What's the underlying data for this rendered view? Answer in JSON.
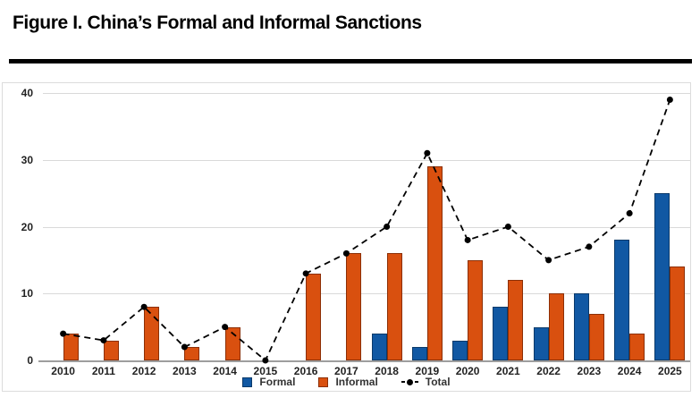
{
  "figure": {
    "title": "Figure I. China’s Formal and Informal Sanctions"
  },
  "chart_data": {
    "type": "bar",
    "title": "Figure I. China’s Formal and Informal Sanctions",
    "categories": [
      "2010",
      "2011",
      "2012",
      "2013",
      "2014",
      "2015",
      "2016",
      "2017",
      "2018",
      "2019",
      "2020",
      "2021",
      "2022",
      "2023",
      "2024",
      "2025"
    ],
    "series": [
      {
        "name": "Formal",
        "kind": "bar",
        "color": "#1158A3",
        "border_color": "#0B3A6A",
        "values": [
          0,
          0,
          0,
          0,
          0,
          0,
          0,
          0,
          4,
          2,
          3,
          8,
          5,
          10,
          18,
          25
        ]
      },
      {
        "name": "Informal",
        "kind": "bar",
        "color": "#D9500F",
        "border_color": "#8C2F06",
        "values": [
          4,
          3,
          8,
          2,
          5,
          0,
          13,
          16,
          16,
          29,
          15,
          12,
          10,
          7,
          4,
          14
        ]
      },
      {
        "name": "Total",
        "kind": "line",
        "color": "#000000",
        "line_style": "dashed",
        "marker": "circle",
        "values": [
          4,
          3,
          8,
          2,
          5,
          0,
          13,
          16,
          20,
          31,
          18,
          20,
          15,
          17,
          22,
          39
        ]
      }
    ],
    "xlabel": "",
    "ylabel": "",
    "ylim": [
      0,
      40
    ],
    "yticks": [
      0,
      10,
      20,
      30,
      40
    ],
    "grid": true,
    "legend_position": "bottom",
    "colors": {
      "gridline": "#d9d9d9",
      "axis": "#9e9e9e",
      "tick_text": "#222222",
      "title_text": "#000000"
    }
  }
}
